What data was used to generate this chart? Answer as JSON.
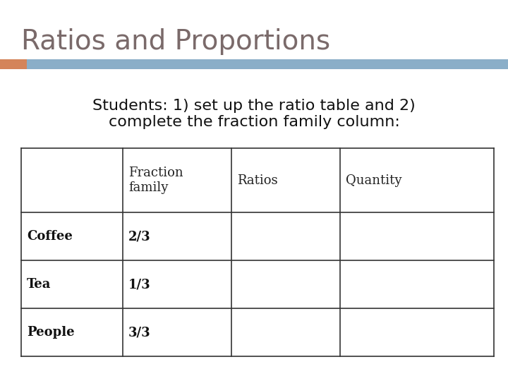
{
  "title": "Ratios and Proportions",
  "title_color": "#7a6a6a",
  "title_fontsize": 28,
  "subtitle": "Students: 1) set up the ratio table and 2)\ncomplete the fraction family column:",
  "subtitle_fontsize": 16,
  "subtitle_color": "#111111",
  "bar1_color": "#d4845a",
  "bar2_color": "#8aaec8",
  "background_color": "#ffffff",
  "table_col_labels": [
    "",
    "Fraction\nfamily",
    "Ratios",
    "Quantity"
  ],
  "table_row_labels": [
    "Coffee",
    "Tea",
    "People"
  ],
  "table_data": [
    [
      "2/3",
      "",
      ""
    ],
    [
      "1/3",
      "",
      ""
    ],
    [
      "3/3",
      "",
      ""
    ]
  ],
  "table_fontsize": 13,
  "table_header_fontsize": 13,
  "line_color": "#333333"
}
